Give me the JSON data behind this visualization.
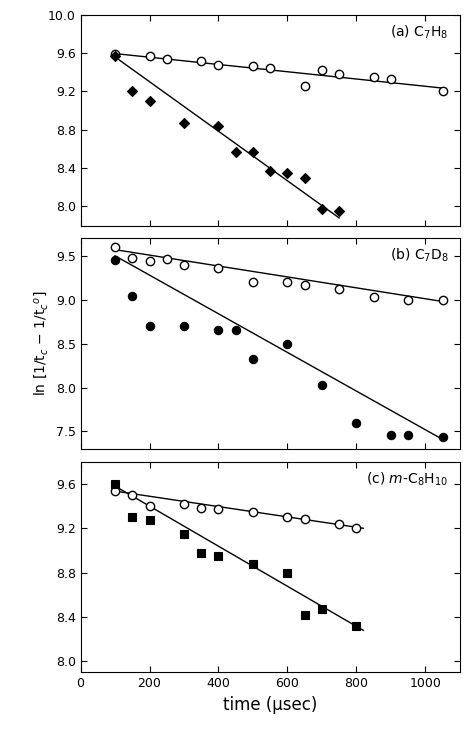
{
  "panels": [
    {
      "label": "(a) C$_7$H$_8$",
      "ylim": [
        7.8,
        10.0
      ],
      "yticks": [
        8.0,
        8.4,
        8.8,
        9.2,
        9.6,
        10.0
      ],
      "open_x": [
        100,
        200,
        250,
        350,
        400,
        500,
        550,
        650,
        700,
        750,
        850,
        900,
        1050
      ],
      "open_y": [
        9.59,
        9.57,
        9.54,
        9.52,
        9.48,
        9.47,
        9.44,
        9.26,
        9.42,
        9.38,
        9.35,
        9.33,
        9.2
      ],
      "open_line_x": [
        100,
        1050
      ],
      "open_line_y": [
        9.595,
        9.235
      ],
      "filled_x": [
        100,
        150,
        200,
        300,
        400,
        450,
        500,
        550,
        600,
        650,
        700,
        750
      ],
      "filled_y": [
        9.57,
        9.2,
        9.1,
        8.87,
        8.84,
        8.57,
        8.57,
        8.37,
        8.35,
        8.3,
        7.97,
        7.95
      ],
      "filled_line_x": [
        100,
        750
      ],
      "filled_line_y": [
        9.56,
        7.88
      ],
      "filled_marker": "D",
      "filled_size": 5
    },
    {
      "label": "(b) C$_7$D$_8$",
      "ylim": [
        7.3,
        9.7
      ],
      "yticks": [
        7.5,
        8.0,
        8.5,
        9.0,
        9.5
      ],
      "open_x": [
        100,
        150,
        200,
        250,
        300,
        400,
        500,
        600,
        650,
        750,
        850,
        950,
        1050
      ],
      "open_y": [
        9.6,
        9.47,
        9.44,
        9.46,
        9.4,
        9.36,
        9.2,
        9.2,
        9.17,
        9.12,
        9.03,
        9.0,
        9.0
      ],
      "open_line_x": [
        100,
        1050
      ],
      "open_line_y": [
        9.57,
        8.98
      ],
      "filled_x": [
        100,
        150,
        200,
        300,
        400,
        450,
        500,
        600,
        700,
        800,
        900,
        950,
        1050
      ],
      "filled_y": [
        9.45,
        9.04,
        8.7,
        8.7,
        8.65,
        8.65,
        8.33,
        8.5,
        8.03,
        7.6,
        7.46,
        7.46,
        7.44
      ],
      "filled_line_x": [
        100,
        1050
      ],
      "filled_line_y": [
        9.5,
        7.41
      ],
      "filled_marker": "o",
      "filled_size": 6
    },
    {
      "label": "(c) $m$-C$_8$H$_{10}$",
      "ylim": [
        7.9,
        9.8
      ],
      "yticks": [
        8.0,
        8.4,
        8.8,
        9.2,
        9.6
      ],
      "open_x": [
        100,
        150,
        200,
        300,
        350,
        400,
        500,
        600,
        650,
        750,
        800
      ],
      "open_y": [
        9.54,
        9.5,
        9.4,
        9.42,
        9.38,
        9.37,
        9.35,
        9.3,
        9.28,
        9.24,
        9.2
      ],
      "open_line_x": [
        100,
        820
      ],
      "open_line_y": [
        9.535,
        9.2
      ],
      "filled_x": [
        100,
        150,
        200,
        300,
        350,
        400,
        500,
        600,
        650,
        700,
        800
      ],
      "filled_y": [
        9.6,
        9.3,
        9.27,
        9.15,
        8.98,
        8.95,
        8.88,
        8.8,
        8.42,
        8.47,
        8.32
      ],
      "filled_line_x": [
        100,
        820
      ],
      "filled_line_y": [
        9.58,
        8.28
      ],
      "filled_marker": "s",
      "filled_size": 6
    }
  ],
  "xlim": [
    0,
    1100
  ],
  "xticks": [
    0,
    200,
    400,
    600,
    800,
    1000
  ],
  "xlabel": "time (μsec)"
}
